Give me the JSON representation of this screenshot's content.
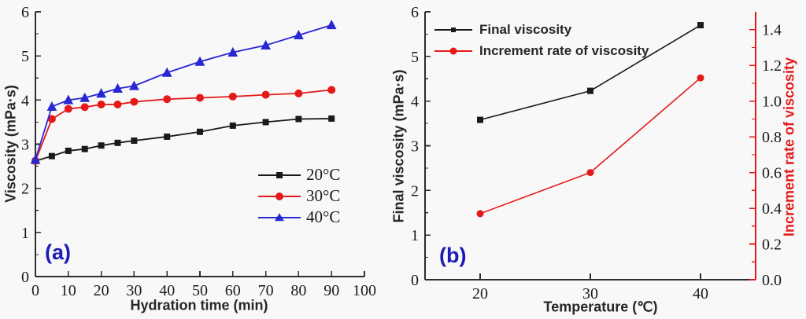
{
  "figure": {
    "background": "#f8f8f8",
    "axis_color": "#2e2e2e",
    "tick_label_color": "#1a1a1a",
    "panel_label_color": "#1c1cb4"
  },
  "chart_data": [
    {
      "type": "line",
      "panel_label": "(a)",
      "xlabel": "Hydration time (min)",
      "ylabel": "Viscosity (mPa·s)",
      "xlim": [
        0,
        100
      ],
      "ylim": [
        0,
        6
      ],
      "xticks": [
        0,
        10,
        20,
        30,
        40,
        50,
        60,
        70,
        80,
        90,
        100
      ],
      "yticks": [
        0,
        1,
        2,
        3,
        4,
        5,
        6
      ],
      "y_minor_step": 0.5,
      "grid": false,
      "legend_position": "right-middle",
      "x": [
        0,
        5,
        10,
        15,
        20,
        25,
        30,
        40,
        50,
        60,
        70,
        80,
        90
      ],
      "series": [
        {
          "name": "20°C",
          "color": "#1a1a1a",
          "marker": "square",
          "values": [
            2.62,
            2.73,
            2.85,
            2.89,
            2.97,
            3.03,
            3.08,
            3.17,
            3.28,
            3.42,
            3.5,
            3.57,
            3.58
          ]
        },
        {
          "name": "30°C",
          "color": "#e41a1a",
          "marker": "circle",
          "values": [
            2.62,
            3.57,
            3.8,
            3.84,
            3.9,
            3.9,
            3.96,
            4.02,
            4.05,
            4.08,
            4.12,
            4.15,
            4.23
          ]
        },
        {
          "name": "40°C",
          "color": "#2727d3",
          "marker": "triangle",
          "values": [
            2.65,
            3.85,
            4.0,
            4.05,
            4.15,
            4.26,
            4.32,
            4.62,
            4.87,
            5.08,
            5.24,
            5.47,
            5.7
          ]
        }
      ]
    },
    {
      "type": "line",
      "panel_label": "(b)",
      "xlabel": "Temperature (℃)",
      "ylabel_left": "Final viscosity (mPa·s)",
      "ylabel_right": "Increment rate of viscosity",
      "xlim": [
        15,
        45
      ],
      "ylim_left": [
        0,
        6
      ],
      "ylim_right": [
        0,
        1.5
      ],
      "xticks": [
        20,
        30,
        40
      ],
      "yticks_left": [
        0,
        1,
        2,
        3,
        4,
        5,
        6
      ],
      "yticks_right": [
        0.0,
        0.2,
        0.4,
        0.6,
        0.8,
        1.0,
        1.2,
        1.4
      ],
      "y_minor_step_left": 0.5,
      "y_minor_step_right": 0.1,
      "grid": false,
      "legend_position": "top-left",
      "x": [
        20,
        30,
        40
      ],
      "series": [
        {
          "name": "Final viscosity",
          "axis": "left",
          "color": "#1a1a1a",
          "marker": "square",
          "values": [
            3.58,
            4.23,
            5.7
          ]
        },
        {
          "name": "Increment rate of viscosity",
          "axis": "right",
          "color": "#e41a1a",
          "marker": "circle",
          "values": [
            0.37,
            0.6,
            1.13
          ]
        }
      ]
    }
  ]
}
